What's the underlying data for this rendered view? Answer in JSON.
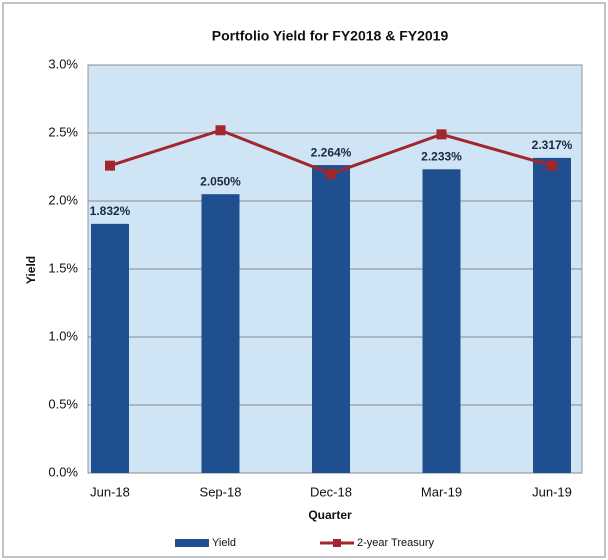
{
  "chart_data": {
    "type": "bar",
    "title": "Portfolio Yield for FY2018 & FY2019",
    "xlabel": "Quarter",
    "ylabel": "Yield",
    "categories": [
      "Jun-18",
      "Sep-18",
      "Dec-18",
      "Mar-19",
      "Jun-19"
    ],
    "series": [
      {
        "name": "Yield",
        "type": "bar",
        "color": "#1f4f8f",
        "values": [
          1.832,
          2.05,
          2.264,
          2.233,
          2.317
        ],
        "value_labels": [
          "1.832%",
          "2.050%",
          "2.264%",
          "2.233%",
          "2.317%"
        ]
      },
      {
        "name": "2-year Treasury",
        "type": "line",
        "color": "#a3262f",
        "values": [
          2.26,
          2.52,
          2.2,
          2.49,
          2.26
        ]
      }
    ],
    "ylim": [
      0,
      3
    ],
    "yticks": [
      {
        "value": 0,
        "label": "0.0%"
      },
      {
        "value": 0.5,
        "label": "0.5%"
      },
      {
        "value": 1,
        "label": "1.0%"
      },
      {
        "value": 1.5,
        "label": "1.5%"
      },
      {
        "value": 2,
        "label": "2.0%"
      },
      {
        "value": 2.5,
        "label": "2.5%"
      },
      {
        "value": 3,
        "label": "3.0%"
      }
    ],
    "grid": true,
    "legend": "bottom"
  }
}
